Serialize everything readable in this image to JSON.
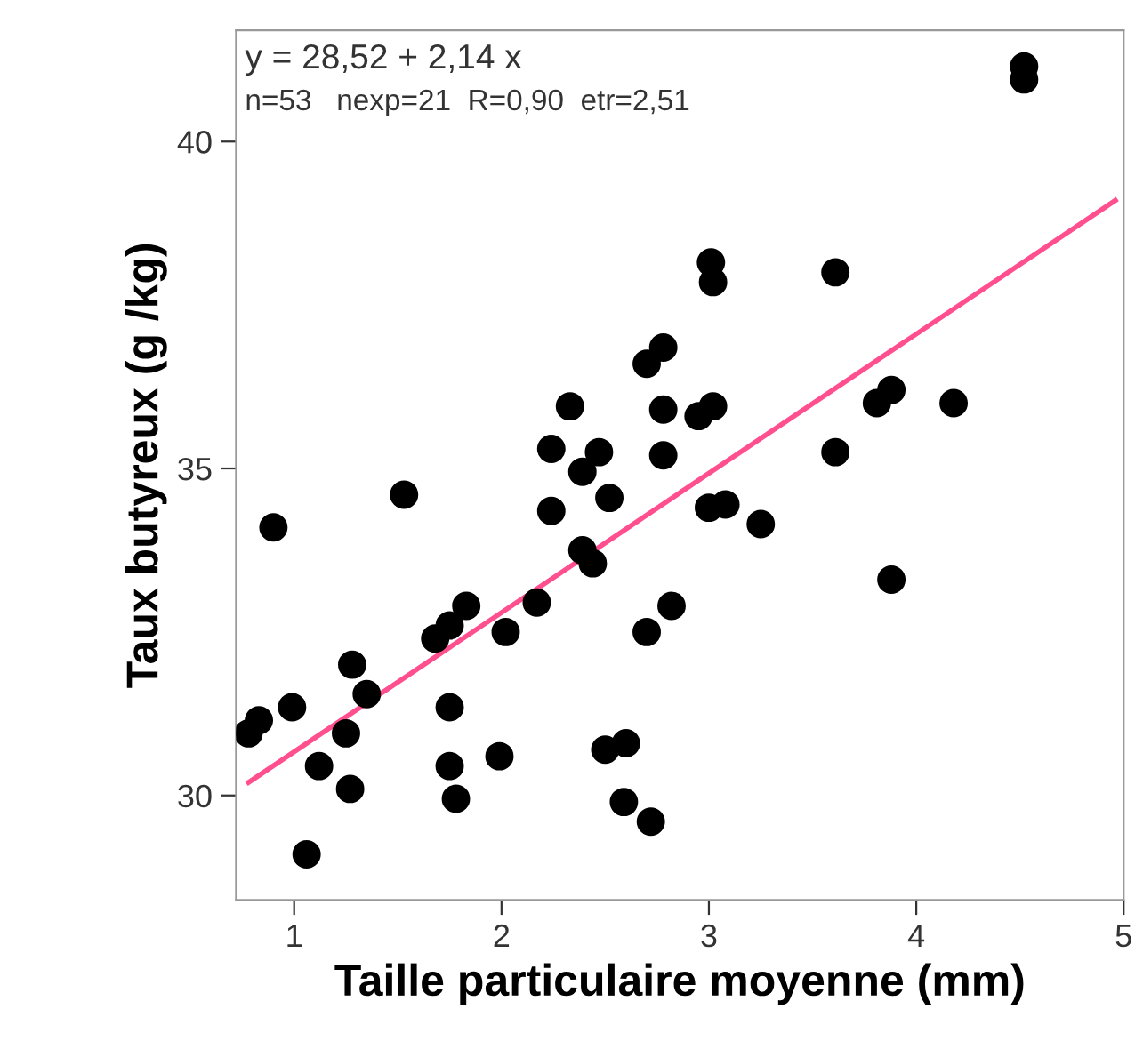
{
  "chart_data": {
    "type": "scatter",
    "xlabel": "Taille particulaire moyenne (mm)",
    "ylabel": "Taux butyreux (g /kg)",
    "xlim": [
      0.72,
      5.0
    ],
    "ylim": [
      28.4,
      41.7
    ],
    "xticks": [
      1,
      2,
      3,
      4,
      5
    ],
    "yticks": [
      30,
      35,
      40
    ],
    "grid": false,
    "legend": false,
    "marker": "circle",
    "annotations": [
      "y = 28,52 + 2,14 x",
      "n=53   nexp=21  R=0,90  etr=2,51"
    ],
    "series": [
      {
        "color": "#000000",
        "x": [
          0.78,
          0.83,
          0.9,
          0.99,
          1.06,
          1.12,
          1.25,
          1.27,
          1.28,
          1.35,
          1.53,
          1.68,
          1.75,
          1.75,
          1.78,
          1.75,
          1.83,
          2.02,
          1.99,
          2.17,
          2.24,
          2.24,
          2.33,
          2.47,
          2.39,
          2.52,
          2.39,
          2.44,
          2.78,
          2.78,
          2.95,
          3.02,
          3.01,
          3.02,
          2.78,
          2.7,
          3.61,
          3.81,
          3.88,
          4.18,
          3.61,
          4.52,
          4.52,
          3.0,
          3.08,
          3.25,
          3.88,
          2.82,
          2.7,
          2.5,
          2.6,
          2.59,
          2.72
        ],
        "values": [
          30.95,
          31.15,
          34.1,
          31.35,
          29.1,
          30.45,
          30.95,
          30.1,
          32.0,
          31.55,
          34.6,
          32.4,
          31.35,
          30.45,
          29.95,
          32.6,
          32.9,
          32.5,
          30.6,
          32.95,
          34.35,
          35.3,
          35.95,
          35.25,
          34.95,
          34.55,
          33.75,
          33.55,
          35.9,
          35.2,
          35.8,
          35.95,
          38.15,
          37.85,
          36.85,
          36.6,
          38.0,
          36.0,
          36.2,
          36.0,
          35.25,
          41.15,
          40.95,
          34.4,
          34.45,
          34.15,
          33.3,
          32.9,
          32.5,
          30.7,
          30.8,
          29.9,
          29.6
        ]
      },
      {
        "type": "line",
        "color": "#ff4f8f",
        "x": [
          0.78,
          4.96
        ],
        "values": [
          30.2,
          39.1
        ],
        "marker": "none"
      }
    ]
  }
}
